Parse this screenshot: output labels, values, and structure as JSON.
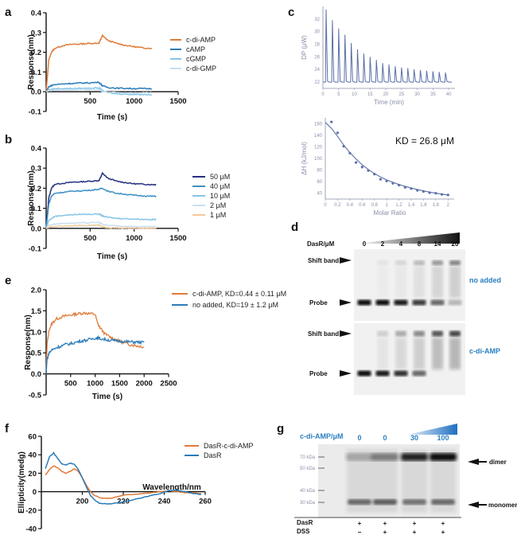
{
  "panels": {
    "a": "a",
    "b": "b",
    "c": "c",
    "d": "d",
    "e": "e",
    "f": "f",
    "g": "g"
  },
  "colors": {
    "orange": "#e07b39",
    "blue": "#2b7bb9",
    "lightblue": "#86c5e8",
    "paleblue": "#c9dff0",
    "navy": "#253080",
    "midblue": "#3d8fc6",
    "peach": "#f2c99a",
    "itc": "#5b6fa6"
  },
  "chart_data": [
    {
      "id": "a",
      "type": "line",
      "xlabel": "Time (s)",
      "ylabel": "Response(nm)",
      "xlim": [
        0,
        1500
      ],
      "ylim": [
        -0.1,
        0.4
      ],
      "xticks": [
        "500",
        "1000",
        "1500"
      ],
      "yticks": [
        "-0.1",
        "0.0",
        "0.1",
        "0.2",
        "0.3",
        "0.4"
      ],
      "series": [
        {
          "name": "c-di-AMP",
          "color": "#e07b39",
          "x": [
            0,
            30,
            60,
            100,
            200,
            300,
            400,
            500,
            600,
            620,
            640,
            700,
            800,
            900,
            1000,
            1100,
            1200
          ],
          "y": [
            0.0,
            0.16,
            0.2,
            0.22,
            0.235,
            0.24,
            0.242,
            0.245,
            0.246,
            0.265,
            0.285,
            0.26,
            0.245,
            0.235,
            0.228,
            0.222,
            0.22
          ]
        },
        {
          "name": "cAMP",
          "color": "#2b7bb9",
          "x": [
            0,
            30,
            80,
            200,
            300,
            400,
            500,
            600,
            640,
            700,
            800,
            900,
            1000,
            1100,
            1200
          ],
          "y": [
            0.0,
            0.025,
            0.035,
            0.04,
            0.042,
            0.044,
            0.045,
            0.048,
            0.03,
            0.022,
            0.018,
            0.017,
            0.016,
            0.016,
            0.015
          ]
        },
        {
          "name": "cGMP",
          "color": "#86c5e8",
          "x": [
            0,
            30,
            100,
            200,
            300,
            400,
            500,
            600,
            640,
            700,
            800,
            900,
            1000,
            1100,
            1200
          ],
          "y": [
            0.0,
            0.01,
            0.015,
            0.016,
            0.016,
            0.017,
            0.018,
            0.02,
            0.005,
            -0.005,
            -0.01,
            -0.012,
            -0.013,
            -0.014,
            -0.015
          ]
        },
        {
          "name": "c-di-GMP",
          "color": "#c9dff0",
          "x": [
            0,
            30,
            100,
            200,
            300,
            400,
            500,
            600,
            640,
            700,
            800,
            900,
            1000,
            1100,
            1200
          ],
          "y": [
            0.0,
            0.005,
            0.008,
            0.009,
            0.01,
            0.01,
            0.01,
            0.01,
            0.0,
            -0.003,
            -0.005,
            -0.005,
            -0.006,
            -0.006,
            -0.006
          ]
        }
      ]
    },
    {
      "id": "b",
      "type": "line",
      "xlabel": "Time (s)",
      "ylabel": "Response(nm)",
      "xlim": [
        0,
        1500
      ],
      "ylim": [
        -0.1,
        0.4
      ],
      "xticks": [
        "500",
        "1000",
        "1500"
      ],
      "yticks": [
        "-0.1",
        "0.0",
        "0.1",
        "0.2",
        "0.3",
        "0.4"
      ],
      "series": [
        {
          "name": "50 µM",
          "color": "#253080",
          "x": [
            0,
            30,
            60,
            100,
            200,
            300,
            400,
            500,
            600,
            620,
            640,
            700,
            800,
            900,
            1000,
            1100,
            1200,
            1250
          ],
          "y": [
            0.0,
            0.15,
            0.2,
            0.22,
            0.225,
            0.23,
            0.232,
            0.235,
            0.238,
            0.255,
            0.275,
            0.25,
            0.235,
            0.228,
            0.222,
            0.22,
            0.218,
            0.218
          ]
        },
        {
          "name": "40 µM",
          "color": "#3d8fc6",
          "x": [
            0,
            30,
            60,
            100,
            200,
            300,
            400,
            500,
            600,
            640,
            700,
            800,
            900,
            1000,
            1100,
            1200,
            1250
          ],
          "y": [
            0.0,
            0.12,
            0.16,
            0.175,
            0.18,
            0.185,
            0.187,
            0.19,
            0.195,
            0.2,
            0.185,
            0.175,
            0.17,
            0.165,
            0.162,
            0.16,
            0.16
          ]
        },
        {
          "name": "10 µM",
          "color": "#86c5e8",
          "x": [
            0,
            30,
            100,
            200,
            300,
            400,
            500,
            600,
            640,
            700,
            800,
            900,
            1000,
            1100,
            1200,
            1250
          ],
          "y": [
            0.0,
            0.04,
            0.06,
            0.065,
            0.068,
            0.07,
            0.07,
            0.072,
            0.062,
            0.055,
            0.05,
            0.048,
            0.046,
            0.045,
            0.044,
            0.044
          ]
        },
        {
          "name": "2 µM",
          "color": "#c9dff0",
          "x": [
            0,
            30,
            100,
            200,
            300,
            400,
            500,
            600,
            640,
            700,
            800,
            900,
            1000,
            1100,
            1200,
            1250
          ],
          "y": [
            0.0,
            0.015,
            0.022,
            0.025,
            0.026,
            0.027,
            0.028,
            0.03,
            0.02,
            0.015,
            0.012,
            0.01,
            0.009,
            0.008,
            0.008,
            0.008
          ]
        },
        {
          "name": "1 µM",
          "color": "#f2c99a",
          "x": [
            0,
            30,
            100,
            200,
            300,
            400,
            500,
            600,
            640,
            700,
            800,
            900,
            1000,
            1100,
            1200,
            1250
          ],
          "y": [
            0.0,
            0.005,
            0.01,
            0.012,
            0.013,
            0.014,
            0.015,
            0.016,
            0.008,
            0.004,
            0.002,
            0.001,
            0.0,
            0.0,
            -0.001,
            -0.001
          ]
        }
      ]
    },
    {
      "id": "c-top",
      "type": "line",
      "xlabel": "Time (min)",
      "ylabel": "DP (μW)",
      "xlim": [
        0,
        42
      ],
      "ylim": [
        21,
        34
      ],
      "xticks": [
        "0",
        "5",
        "10",
        "15",
        "20",
        "25",
        "30",
        "35",
        "40"
      ],
      "yticks": [
        "22",
        "24",
        "26",
        "28",
        "30",
        "32"
      ],
      "series": [
        {
          "name": "",
          "color": "#5b6fa6",
          "injection_times": [
            1,
            3,
            5,
            7,
            9,
            11,
            13,
            15,
            17,
            19,
            21,
            23,
            25,
            27,
            29,
            31,
            33,
            35,
            37,
            39
          ],
          "peak_values": [
            33.5,
            31.8,
            30.5,
            29.5,
            28.2,
            27.2,
            26.5,
            26.0,
            25.5,
            25.0,
            24.8,
            24.5,
            24.3,
            24.2,
            24.0,
            23.9,
            23.8,
            23.7,
            23.6,
            23.5
          ],
          "baseline": 22.0
        }
      ]
    },
    {
      "id": "c-bottom",
      "type": "scatter",
      "xlabel": "Molar Ratio",
      "ylabel": "ΔH (kJ/mol)",
      "xlim": [
        0,
        2.1
      ],
      "ylim": [
        30,
        170
      ],
      "xticks": [
        "0",
        "0.2",
        "0.4",
        "0.6",
        "0.8",
        "1",
        "1.2",
        "1.4",
        "1.6",
        "1.8",
        "2"
      ],
      "yticks": [
        "40",
        "60",
        "80",
        "100",
        "120",
        "140",
        "160"
      ],
      "annotation": "KD = 26.8 μM",
      "points": {
        "x": [
          0.1,
          0.2,
          0.3,
          0.4,
          0.5,
          0.6,
          0.7,
          0.8,
          0.9,
          1.0,
          1.1,
          1.2,
          1.3,
          1.4,
          1.5,
          1.6,
          1.7,
          1.8,
          1.9,
          2.0
        ],
        "y": [
          163,
          144,
          121,
          109,
          93,
          85,
          79,
          73,
          64,
          61,
          57,
          54,
          50,
          48,
          45,
          43,
          41,
          40,
          38,
          37
        ]
      },
      "fit": {
        "x": [
          0.0,
          0.1,
          0.2,
          0.3,
          0.4,
          0.5,
          0.6,
          0.7,
          0.8,
          0.9,
          1.0,
          1.2,
          1.4,
          1.6,
          1.8,
          2.0
        ],
        "y": [
          162,
          152,
          138,
          123,
          110,
          99,
          89,
          81,
          74,
          68,
          63,
          55,
          49,
          44,
          40,
          37
        ]
      }
    },
    {
      "id": "e",
      "type": "line",
      "xlabel": "Time (s)",
      "ylabel": "Response(nm)",
      "xlim": [
        0,
        2500
      ],
      "ylim": [
        -0.5,
        2.0
      ],
      "xticks": [
        "500",
        "1000",
        "1500",
        "2000",
        "2500"
      ],
      "yticks": [
        "-0.5",
        "0.0",
        "0.5",
        "1.0",
        "1.5",
        "2.0"
      ],
      "series": [
        {
          "name": "c-di-AMP, KD=0.44 ± 0.11 μM",
          "color": "#e07b39",
          "x": [
            0,
            20,
            60,
            120,
            200,
            300,
            400,
            500,
            600,
            700,
            800,
            900,
            1000,
            1050,
            1100,
            1200,
            1300,
            1400,
            1500,
            1600,
            1700,
            1800,
            1900,
            2000
          ],
          "y": [
            0.0,
            0.7,
            1.05,
            1.2,
            1.3,
            1.35,
            1.38,
            1.4,
            1.42,
            1.44,
            1.45,
            1.43,
            1.42,
            1.2,
            1.1,
            0.95,
            0.88,
            0.82,
            0.78,
            0.73,
            0.7,
            0.68,
            0.66,
            0.64
          ]
        },
        {
          "name": "no added, KD=19 ± 1.2  μM",
          "color": "#2b7bb9",
          "x": [
            0,
            20,
            60,
            120,
            200,
            300,
            400,
            500,
            600,
            700,
            800,
            900,
            1000,
            1050,
            1100,
            1200,
            1300,
            1400,
            1500,
            1600,
            1700,
            1800,
            1900,
            2000
          ],
          "y": [
            0.0,
            0.35,
            0.5,
            0.57,
            0.62,
            0.66,
            0.7,
            0.72,
            0.75,
            0.78,
            0.8,
            0.82,
            0.85,
            0.86,
            0.84,
            0.82,
            0.8,
            0.79,
            0.78,
            0.77,
            0.76,
            0.76,
            0.75,
            0.75
          ]
        }
      ]
    },
    {
      "id": "f",
      "type": "line",
      "xlabel": "Wavelength/nm",
      "ylabel": "Ellipticity(medg)",
      "xlim": [
        180,
        260
      ],
      "ylim": [
        -40,
        60
      ],
      "xticks": [
        "200",
        "220",
        "240",
        "260"
      ],
      "yticks": [
        "-40",
        "-20",
        "0",
        "20",
        "40",
        "60"
      ],
      "series": [
        {
          "name": "DasR-c-di-AMP",
          "color": "#e07b39",
          "x": [
            182,
            184,
            186,
            188,
            190,
            192,
            194,
            196,
            198,
            200,
            202,
            204,
            206,
            208,
            210,
            214,
            218,
            222,
            226,
            230,
            234,
            238,
            242,
            246,
            250,
            254,
            258
          ],
          "y": [
            18,
            24,
            28,
            26,
            22,
            20,
            22,
            25,
            22,
            15,
            7,
            0,
            -4,
            -6,
            -7,
            -7,
            -5,
            -3,
            -3,
            -2,
            -1,
            0,
            1,
            0,
            -1,
            -1,
            -2
          ]
        },
        {
          "name": "DasR",
          "color": "#2b7bb9",
          "x": [
            182,
            184,
            186,
            188,
            190,
            192,
            194,
            196,
            198,
            200,
            202,
            204,
            206,
            208,
            210,
            214,
            218,
            222,
            226,
            230,
            234,
            238,
            242,
            246,
            250,
            254,
            258
          ],
          "y": [
            25,
            38,
            42,
            36,
            30,
            29,
            31,
            30,
            24,
            15,
            5,
            -4,
            -9,
            -12,
            -13,
            -13,
            -12,
            -10,
            -8,
            -6,
            -4,
            -2,
            1,
            2,
            0,
            -2,
            -3
          ]
        }
      ]
    }
  ],
  "panel_d": {
    "label": "DasR/μM",
    "concentrations": [
      "0",
      "2",
      "4",
      "8",
      "14",
      "20"
    ],
    "row_labels": {
      "shift": "Shift band",
      "probe": "Probe"
    },
    "conditions": [
      "no added",
      "c-di-AMP"
    ],
    "probe_intensity_top": [
      1.0,
      1.0,
      0.95,
      0.8,
      0.6,
      0.25
    ],
    "shift_intensity_top": [
      0.0,
      0.1,
      0.2,
      0.4,
      0.65,
      0.8
    ],
    "probe_intensity_bottom": [
      1.0,
      0.95,
      0.85,
      0.6,
      0.0,
      0.0
    ],
    "shift_intensity_bottom": [
      0.0,
      0.2,
      0.4,
      0.6,
      0.9,
      1.0
    ]
  },
  "panel_g": {
    "title": "c-di-AMP/μM",
    "concentrations": [
      "0",
      "0",
      "30",
      "100"
    ],
    "markers": [
      "70 kDa",
      "50 kDa",
      "40 kDa",
      "30 kDa"
    ],
    "bands": {
      "dimer": "dimer",
      "monomer": "monomer"
    },
    "row_labels": [
      "DasR",
      "DSS"
    ],
    "dasr": [
      "+",
      "+",
      "+",
      "+"
    ],
    "dss": [
      "−",
      "+",
      "+",
      "+"
    ],
    "dimer_intensity": [
      0.25,
      0.45,
      0.9,
      1.0
    ],
    "monomer_intensity": [
      0.55,
      0.6,
      0.5,
      0.55
    ]
  }
}
